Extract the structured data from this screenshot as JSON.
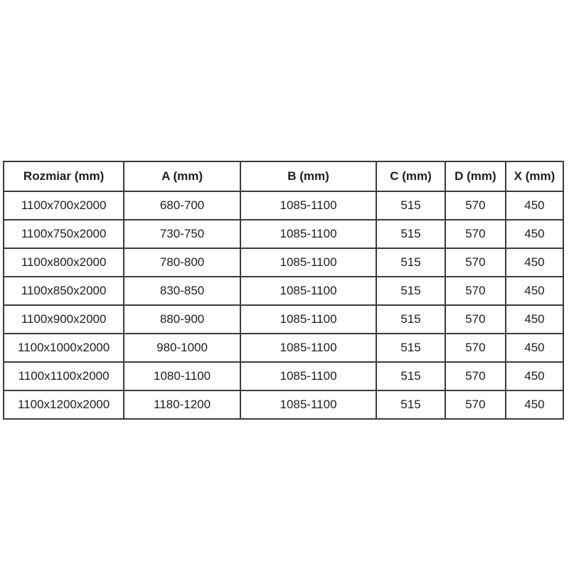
{
  "page": {
    "background": "#ffffff",
    "border_color": "#3b3b3b",
    "text_color": "#1d1d1d"
  },
  "chart_data": {
    "type": "table",
    "title": "",
    "columns": [
      "Rozmiar (mm)",
      "A (mm)",
      "B (mm)",
      "C (mm)",
      "D (mm)",
      "X (mm)"
    ],
    "rows": [
      [
        "1100x700x2000",
        "680-700",
        "1085-1100",
        "515",
        "570",
        "450"
      ],
      [
        "1100x750x2000",
        "730-750",
        "1085-1100",
        "515",
        "570",
        "450"
      ],
      [
        "1100x800x2000",
        "780-800",
        "1085-1100",
        "515",
        "570",
        "450"
      ],
      [
        "1100x850x2000",
        "830-850",
        "1085-1100",
        "515",
        "570",
        "450"
      ],
      [
        "1100x900x2000",
        "880-900",
        "1085-1100",
        "515",
        "570",
        "450"
      ],
      [
        "1100x1000x2000",
        "980-1000",
        "1085-1100",
        "515",
        "570",
        "450"
      ],
      [
        "1100x1100x2000",
        "1080-1100",
        "1085-1100",
        "515",
        "570",
        "450"
      ],
      [
        "1100x1200x2000",
        "1180-1200",
        "1085-1100",
        "515",
        "570",
        "450"
      ]
    ]
  }
}
